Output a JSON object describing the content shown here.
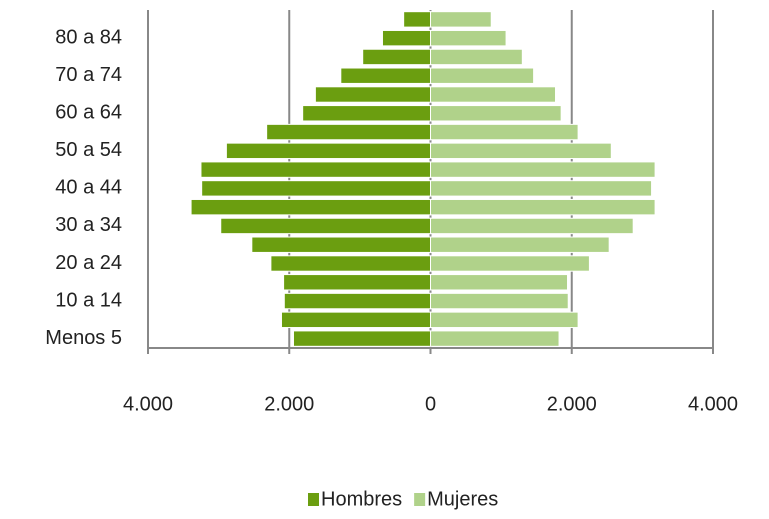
{
  "chart_data": {
    "type": "pyramid",
    "categories": [
      "Menos 5",
      null,
      "10 a 14",
      null,
      "20 a 24",
      null,
      "30 a 34",
      null,
      "40 a 44",
      null,
      "50 a 54",
      null,
      "60 a 64",
      null,
      "70 a 74",
      null,
      "80 a 84",
      null
    ],
    "series": [
      {
        "name": "Hombres",
        "color": "#6b9e10",
        "values": [
          -1940,
          -2110,
          -2070,
          -2080,
          -2260,
          -2530,
          -2970,
          -3390,
          -3240,
          -3250,
          -2890,
          -2320,
          -1810,
          -1630,
          -1270,
          -960,
          -680,
          -380
        ]
      },
      {
        "name": "Mujeres",
        "color": "#b0d28a",
        "values": [
          1820,
          2090,
          1950,
          1940,
          2250,
          2530,
          2870,
          3180,
          3130,
          3180,
          2560,
          2090,
          1850,
          1770,
          1460,
          1300,
          1070,
          860
        ]
      }
    ],
    "xlim": [
      -4000,
      4000
    ],
    "xticks": [
      {
        "value": -4000,
        "label": "4.000"
      },
      {
        "value": -2000,
        "label": "2.000"
      },
      0,
      {
        "value": 2000,
        "label": "2.000"
      },
      {
        "value": 4000,
        "label": "4.000"
      }
    ],
    "grid": true,
    "legend": "bottom"
  }
}
